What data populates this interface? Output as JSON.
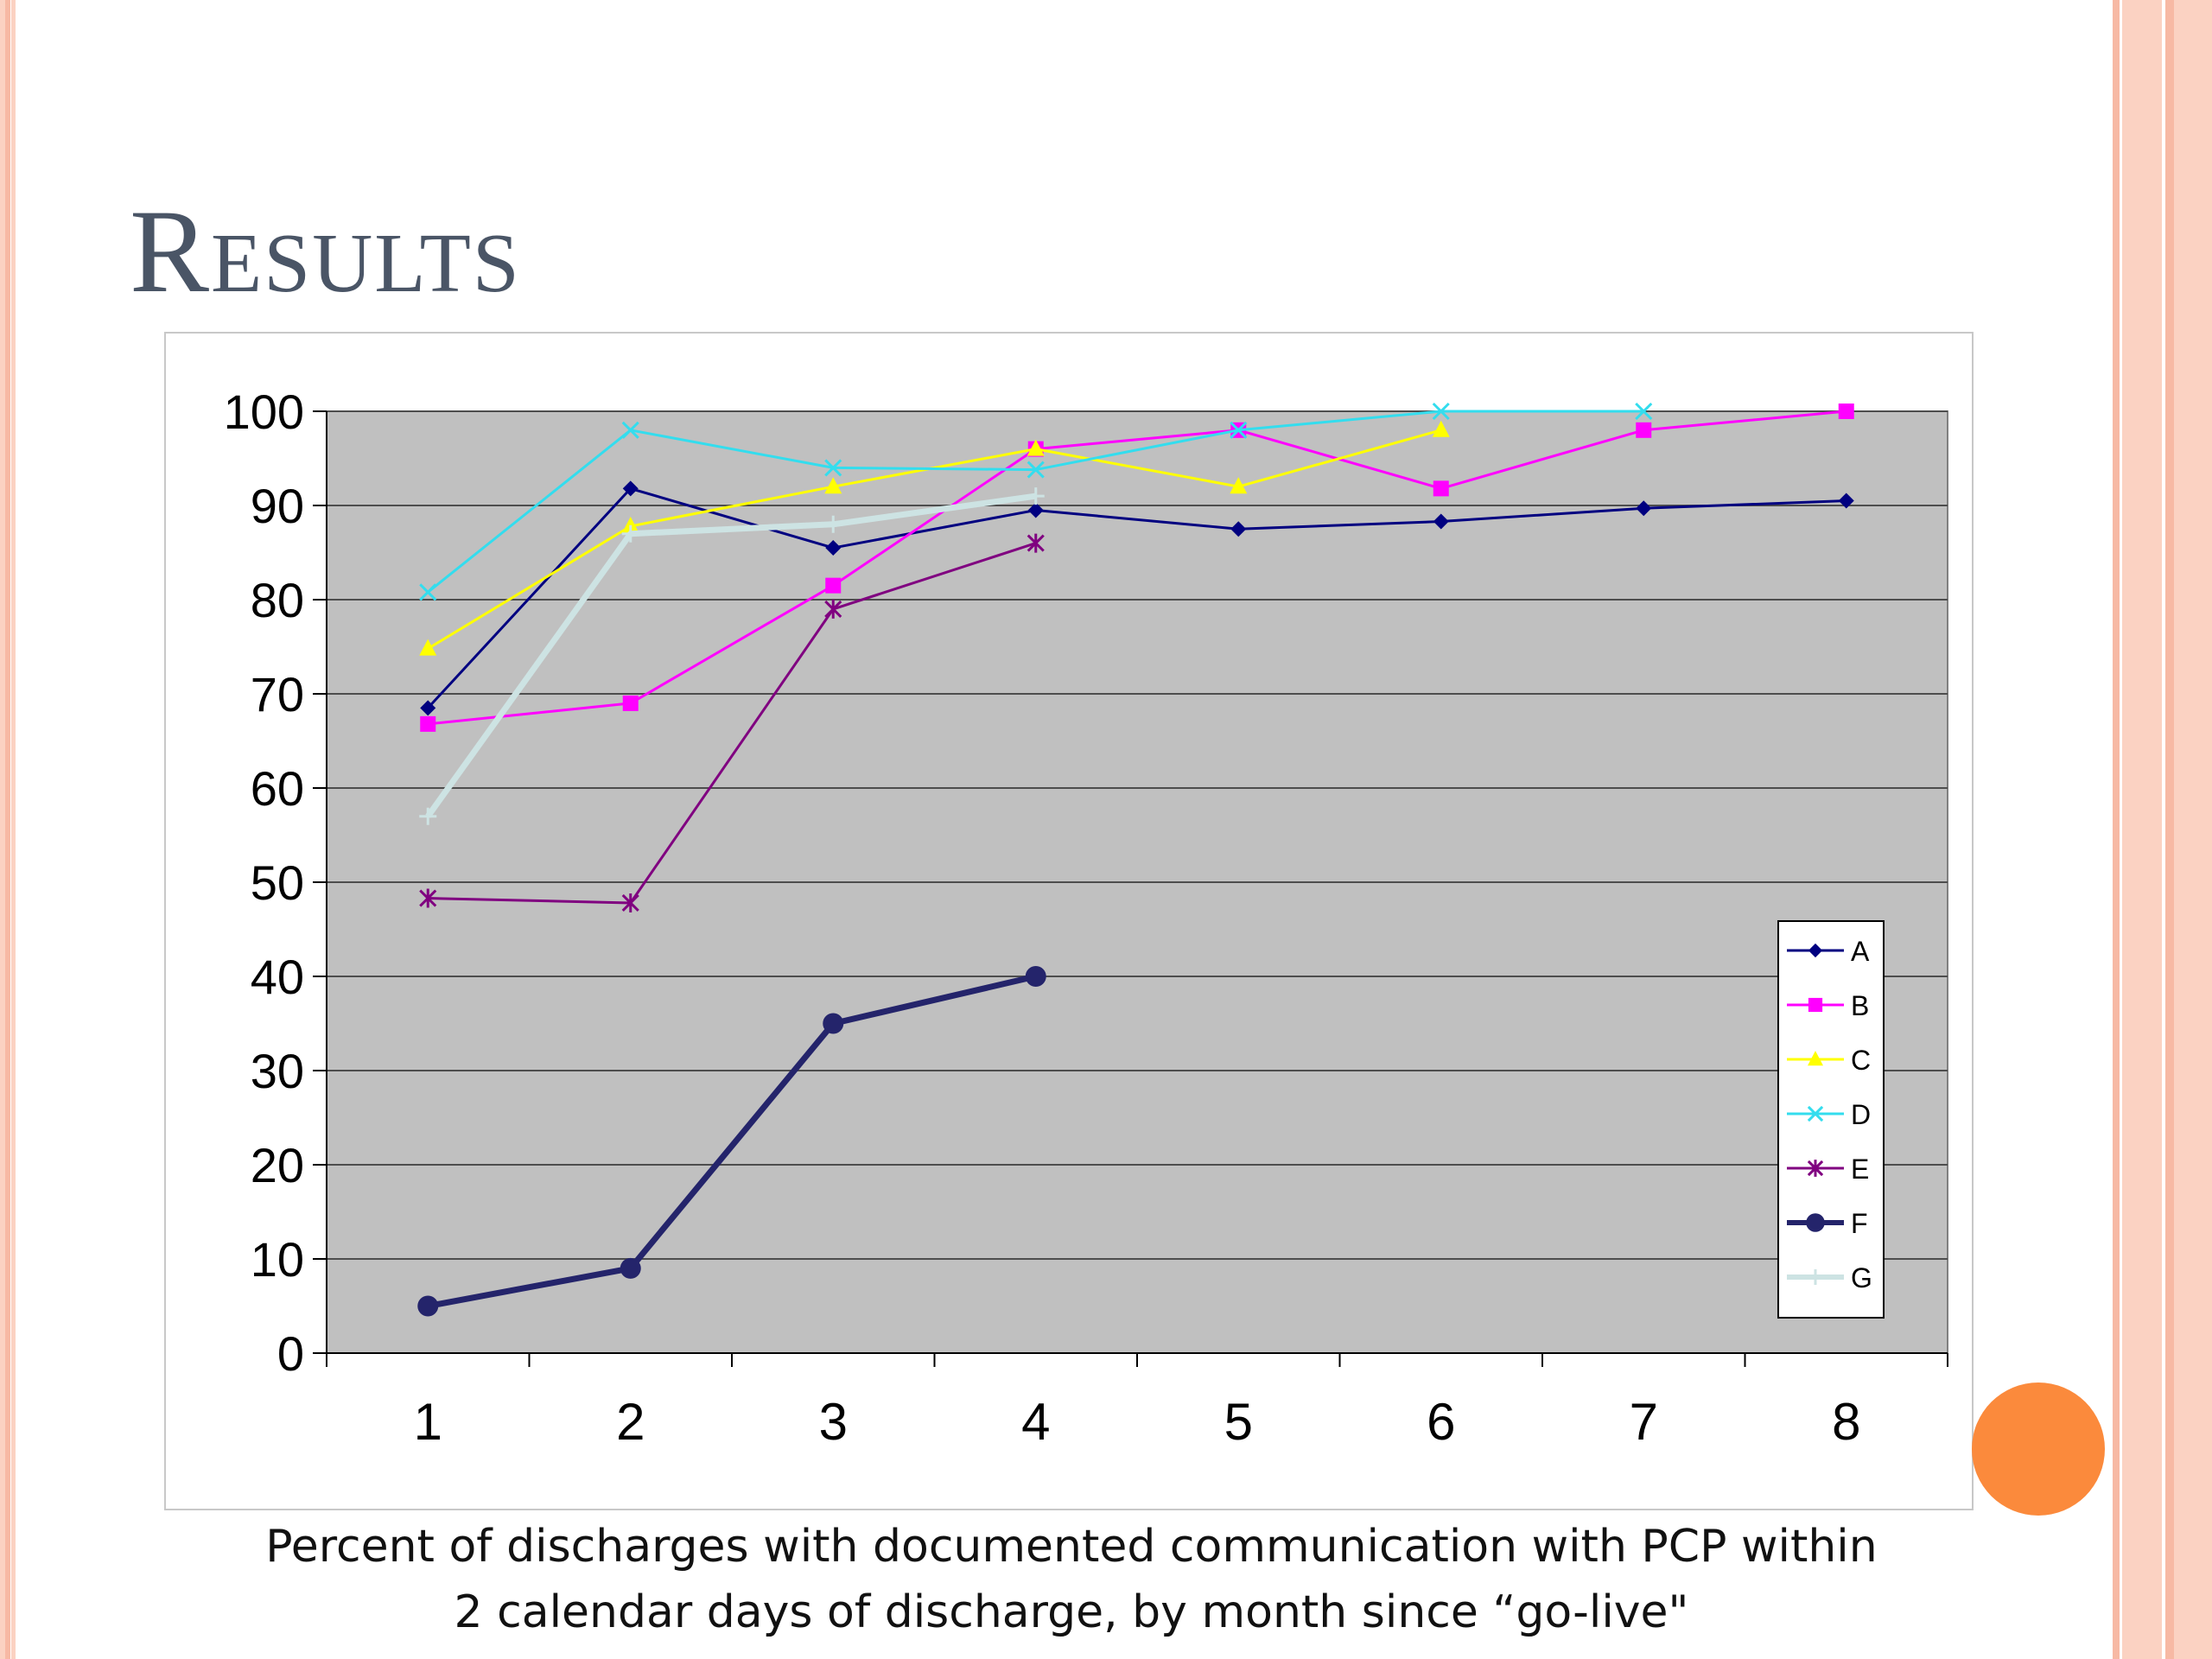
{
  "slide": {
    "title": "Results",
    "caption_line1": "Percent of discharges with documented communication with PCP within",
    "caption_line2": "2 calendar days of discharge, by month since “go-live\""
  },
  "theme": {
    "border_color": "#f7b9a4",
    "border_inner": "#fbd2c2",
    "accent_circle": "#fb8a3c",
    "plot_bg": "#c0c0c0",
    "gridline": "#4d4d4d"
  },
  "chart_data": {
    "type": "line",
    "title": "",
    "xlabel": "",
    "ylabel": "",
    "x": [
      1,
      2,
      3,
      4,
      5,
      6,
      7,
      8
    ],
    "ylim": [
      0,
      100
    ],
    "yticks": [
      0,
      10,
      20,
      30,
      40,
      50,
      60,
      70,
      80,
      90,
      100
    ],
    "grid": true,
    "legend_position": "right",
    "series": [
      {
        "name": "A",
        "color": "#000080",
        "marker": "diamond",
        "bold": false,
        "values": [
          68.5,
          91.8,
          85.5,
          89.5,
          87.5,
          88.3,
          89.7,
          90.5
        ]
      },
      {
        "name": "B",
        "color": "#ff00ff",
        "marker": "square",
        "bold": false,
        "values": [
          66.8,
          69,
          81.5,
          96,
          98,
          91.8,
          98,
          100
        ]
      },
      {
        "name": "C",
        "color": "#ffff00",
        "marker": "triangle",
        "bold": false,
        "values": [
          74.8,
          87.8,
          92,
          96,
          92,
          98,
          null,
          null
        ]
      },
      {
        "name": "D",
        "color": "#33ddee",
        "marker": "x",
        "bold": false,
        "values": [
          80.8,
          98,
          94,
          93.8,
          98,
          100,
          100,
          null
        ]
      },
      {
        "name": "E",
        "color": "#800080",
        "marker": "star",
        "bold": false,
        "values": [
          48.3,
          47.8,
          79,
          86,
          null,
          null,
          null,
          null
        ]
      },
      {
        "name": "F",
        "color": "#24246b",
        "marker": "circle",
        "bold": true,
        "values": [
          5,
          9,
          35,
          40,
          null,
          null,
          null,
          null
        ]
      },
      {
        "name": "G",
        "color": "#cde3e3",
        "marker": "plus",
        "bold": true,
        "values": [
          57,
          87,
          88,
          91,
          null,
          null,
          null,
          null
        ]
      }
    ]
  }
}
